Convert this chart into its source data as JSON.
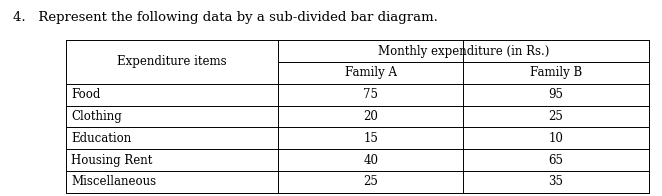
{
  "title": "4.   Represent the following data by a sub-divided bar diagram.",
  "col_header_merged": "Monthly expenditure (in Rs.)",
  "col_header_left": "Expenditure items",
  "col_header_a": "Family A",
  "col_header_b": "Family B",
  "rows": [
    {
      "item": "Food",
      "a": "75",
      "b": "95"
    },
    {
      "item": "Clothing",
      "a": "20",
      "b": "25"
    },
    {
      "item": "Education",
      "a": "15",
      "b": "10"
    },
    {
      "item": "Housing Rent",
      "a": "40",
      "b": "65"
    },
    {
      "item": "Miscellaneous",
      "a": "25",
      "b": "35"
    }
  ],
  "bg_color": "#ffffff",
  "text_color": "#000000",
  "font_size_title": 9.5,
  "font_size_table": 8.5,
  "fig_width": 6.62,
  "fig_height": 1.96,
  "dpi": 100
}
